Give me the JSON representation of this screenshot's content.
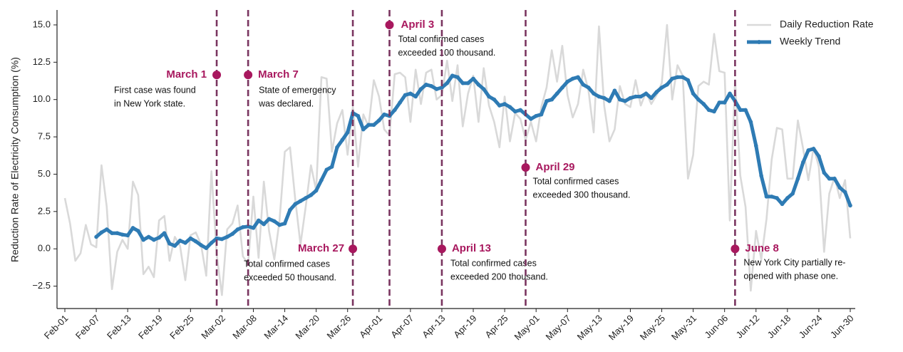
{
  "chart_data": {
    "type": "line",
    "ylabel": "Reduction Rate of Electricity Consumption (%)",
    "categories": [
      "Feb-01",
      null,
      null,
      null,
      null,
      null,
      "Feb-07",
      null,
      null,
      null,
      null,
      null,
      "Feb-13",
      null,
      null,
      null,
      null,
      null,
      "Feb-19",
      null,
      null,
      null,
      null,
      null,
      "Feb-25",
      null,
      null,
      null,
      null,
      null,
      "Mar-02",
      null,
      null,
      null,
      null,
      null,
      "Mar-08",
      null,
      null,
      null,
      null,
      null,
      "Mar-14",
      null,
      null,
      null,
      null,
      null,
      "Mar-20",
      null,
      null,
      null,
      null,
      null,
      "Mar-26",
      null,
      null,
      null,
      null,
      null,
      "Apr-01",
      null,
      null,
      null,
      null,
      null,
      "Apr-07",
      null,
      null,
      null,
      null,
      null,
      "Apr-13",
      null,
      null,
      null,
      null,
      null,
      "Apr-19",
      null,
      null,
      null,
      null,
      null,
      "Apr-25",
      null,
      null,
      null,
      null,
      null,
      "May-01",
      null,
      null,
      null,
      null,
      null,
      "May-07",
      null,
      null,
      null,
      null,
      null,
      "May-13",
      null,
      null,
      null,
      null,
      null,
      "May-19",
      null,
      null,
      null,
      null,
      null,
      "May-25",
      null,
      null,
      null,
      null,
      null,
      "May-31",
      null,
      null,
      null,
      null,
      null,
      "Jun-06",
      null,
      null,
      null,
      null,
      null,
      "Jun-12",
      null,
      null,
      null,
      null,
      null,
      "Jun-18",
      null,
      null,
      null,
      null,
      null,
      "Jun-24",
      null,
      null,
      null,
      null,
      null,
      "Jun-30"
    ],
    "series": [
      {
        "name": "Daily Reduction Rate",
        "color": "#d9d9d9",
        "marker": false,
        "values": [
          3.4,
          1.7,
          -0.8,
          -0.3,
          1.6,
          0.3,
          0.1,
          5.6,
          2.8,
          -2.7,
          -0.2,
          0.6,
          0.0,
          4.5,
          3.6,
          -1.7,
          -1.2,
          -1.9,
          1.9,
          2.2,
          -0.8,
          0.8,
          0.2,
          -2.1,
          0.9,
          1.1,
          0.3,
          -1.8,
          5.2,
          -0.4,
          -3.1,
          1.3,
          1.7,
          2.9,
          -0.5,
          -1.0,
          3.5,
          -0.6,
          4.5,
          1.2,
          -0.7,
          1.9,
          6.5,
          6.8,
          3.3,
          0.3,
          2.8,
          5.6,
          3.9,
          11.5,
          11.4,
          6.5,
          8.4,
          9.3,
          6.3,
          9.5,
          5.5,
          9.0,
          8.2,
          11.3,
          10.2,
          8.0,
          7.6,
          11.7,
          11.8,
          11.5,
          8.5,
          12.0,
          9.7,
          11.8,
          12.0,
          10.0,
          10.3,
          12.6,
          9.9,
          12.3,
          8.2,
          10.4,
          11.6,
          8.5,
          12.1,
          9.6,
          8.5,
          6.8,
          10.2,
          7.2,
          9.1,
          8.7,
          7.3,
          8.5,
          7.2,
          9.5,
          10.8,
          13.3,
          11.2,
          13.6,
          10.3,
          8.8,
          9.7,
          12.0,
          10.6,
          7.8,
          14.9,
          9.6,
          7.2,
          8.0,
          10.9,
          9.7,
          9.5,
          11.3,
          9.6,
          10.5,
          9.7,
          10.3,
          11.1,
          15.0,
          10.0,
          12.3,
          11.6,
          4.7,
          6.3,
          10.9,
          11.2,
          11.0,
          14.4,
          11.9,
          11.8,
          1.9,
          11.3,
          4.9,
          2.8,
          -2.8,
          1.2,
          -0.7,
          2.0,
          6.0,
          8.1,
          8.0,
          4.7,
          4.7,
          8.6,
          6.7,
          4.6,
          6.8,
          5.5,
          -0.2,
          3.7,
          4.8,
          3.4,
          4.6,
          0.7
        ]
      },
      {
        "name": "Weekly Trend",
        "color": "#2e7bb4",
        "marker": true,
        "values": [
          null,
          null,
          null,
          null,
          null,
          null,
          0.8,
          1.1,
          1.3,
          1.05,
          1.05,
          0.95,
          0.9,
          1.4,
          1.2,
          0.6,
          0.8,
          0.6,
          0.75,
          1.05,
          0.35,
          0.2,
          0.55,
          0.4,
          0.7,
          0.5,
          0.25,
          0.05,
          0.4,
          0.7,
          0.65,
          0.8,
          1.0,
          1.3,
          1.45,
          1.5,
          1.4,
          1.9,
          1.65,
          2.0,
          1.85,
          1.6,
          1.7,
          2.6,
          3.0,
          3.2,
          3.4,
          3.6,
          3.9,
          4.6,
          5.3,
          5.5,
          6.8,
          7.3,
          7.8,
          9.1,
          8.9,
          8.0,
          8.3,
          8.3,
          8.6,
          9.0,
          8.9,
          9.3,
          9.8,
          10.3,
          10.4,
          10.2,
          10.7,
          11.0,
          10.9,
          10.7,
          10.8,
          11.1,
          11.6,
          11.5,
          11.1,
          11.1,
          11.4,
          11.0,
          10.7,
          10.2,
          10.0,
          9.6,
          9.7,
          9.5,
          9.2,
          9.3,
          9.0,
          8.7,
          8.9,
          9.0,
          9.9,
          10.0,
          10.4,
          10.8,
          11.2,
          11.4,
          11.5,
          11.0,
          10.8,
          10.4,
          10.2,
          10.1,
          9.9,
          10.6,
          10.0,
          9.9,
          10.1,
          10.2,
          10.2,
          10.4,
          10.1,
          10.5,
          10.8,
          11.0,
          11.4,
          11.5,
          11.5,
          11.3,
          10.4,
          10.0,
          9.7,
          9.3,
          9.2,
          9.8,
          9.8,
          10.4,
          9.9,
          9.3,
          9.3,
          8.5,
          6.9,
          4.9,
          3.5,
          3.5,
          3.4,
          3.0,
          3.4,
          3.7,
          4.7,
          5.8,
          6.6,
          6.7,
          6.2,
          5.1,
          4.7,
          4.7,
          4.1,
          3.8,
          2.9
        ]
      }
    ],
    "ylim": [
      -4,
      16
    ],
    "yticks": [
      {
        "value": -2.5,
        "label": "−2.5"
      },
      {
        "value": 0,
        "label": "0.0"
      },
      {
        "value": 2.5,
        "label": "2.5"
      },
      {
        "value": 5,
        "label": "5.0"
      },
      {
        "value": 7.5,
        "label": "7.5"
      },
      {
        "value": 10,
        "label": "10.0"
      },
      {
        "value": 12.5,
        "label": "12.5"
      },
      {
        "value": 15,
        "label": "15.0"
      }
    ],
    "legend": "upper right",
    "event_color": "#7a3560",
    "marker_color": "#a8185e",
    "annotations": [
      {
        "x": 29,
        "y": 11.65,
        "label": "March 1",
        "text": [
          "First case was found",
          "in New York state."
        ]
      },
      {
        "x": 35,
        "y": 11.65,
        "label": "March 7",
        "text": [
          "State of emergency",
          "was declared."
        ]
      },
      {
        "x": 55,
        "y": 0,
        "label": "March 27",
        "text": [
          "Total confirmed cases",
          "exceeded 50 thousand."
        ]
      },
      {
        "x": 62,
        "y": 15,
        "label": "April 3",
        "text": [
          "Total confirmed cases",
          "exceeded 100 thousand."
        ]
      },
      {
        "x": 72,
        "y": 0,
        "label": "April 13",
        "text": [
          "Total confirmed cases",
          "exceeded 200 thousand."
        ]
      },
      {
        "x": 88,
        "y": 5.45,
        "label": "April 29",
        "text": [
          "Total confirmed cases",
          "exceeded 300 thousand."
        ]
      },
      {
        "x": 128,
        "y": 0,
        "label": "June 8",
        "text": [
          "New York City partially re-",
          "opened with phase one."
        ]
      }
    ]
  }
}
